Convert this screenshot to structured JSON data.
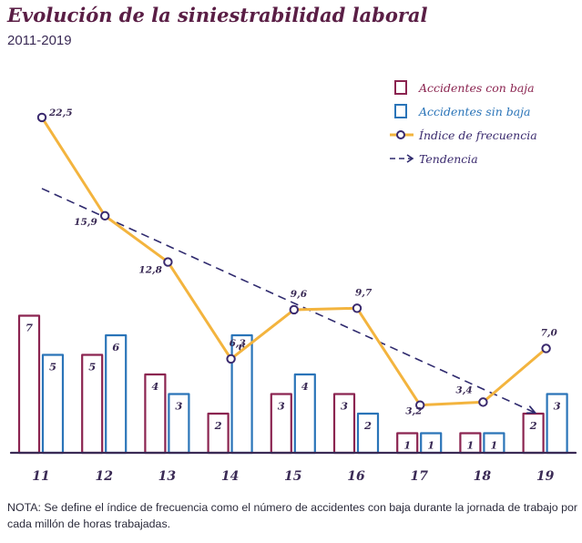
{
  "header": {
    "title": "Evolución de la siniestrabilidad laboral",
    "subtitle": "2011-2019"
  },
  "chart_data": {
    "type": "bar",
    "categories": [
      "11",
      "12",
      "13",
      "14",
      "15",
      "16",
      "17",
      "18",
      "19"
    ],
    "series": [
      {
        "name": "Accidentes con baja",
        "kind": "bar",
        "color": "#8b2450",
        "values": [
          7,
          5,
          4,
          2,
          3,
          3,
          1,
          1,
          2
        ]
      },
      {
        "name": "Accidentes sin baja",
        "kind": "bar",
        "color": "#2a74b8",
        "values": [
          5,
          6,
          3,
          6,
          4,
          2,
          1,
          1,
          3
        ]
      },
      {
        "name": "Índice de frecuencia",
        "kind": "line",
        "color": "#f3b43e",
        "marker_color": "#3a2a6e",
        "values": [
          22.5,
          15.9,
          12.8,
          6.3,
          9.6,
          9.7,
          3.2,
          3.4,
          7.0
        ],
        "labels": [
          "22,5",
          "15,9",
          "12,8",
          "6,3",
          "9,6",
          "9,7",
          "3,2",
          "3,4",
          "7,0"
        ]
      },
      {
        "name": "Tendencia",
        "kind": "trend-line",
        "color": "#2f2a6e",
        "style": "dashed-arrow"
      }
    ],
    "bar_ylim": [
      0,
      8
    ],
    "line_ylim": [
      0,
      25
    ],
    "grid": false,
    "legend": "top-right",
    "xlabel": "",
    "ylabel": ""
  },
  "note": "NOTA: Se define el índice de frecuencia como el número de accidentes con baja durante la jornada de trabajo por cada millón de horas trabajadas."
}
